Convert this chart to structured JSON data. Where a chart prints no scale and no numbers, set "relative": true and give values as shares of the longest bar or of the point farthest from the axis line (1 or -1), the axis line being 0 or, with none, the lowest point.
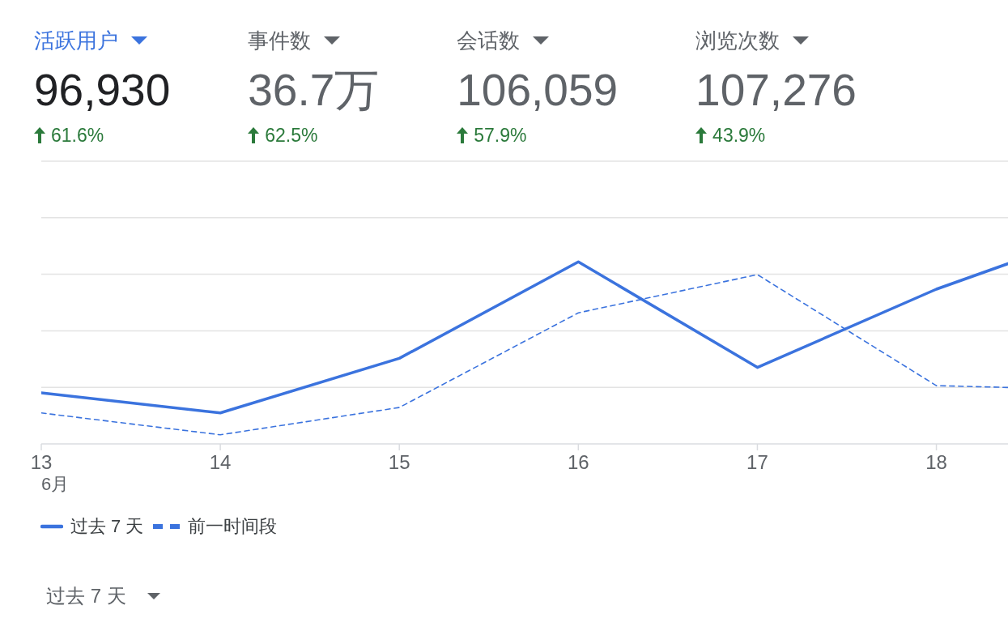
{
  "chart_data": [
    {
      "type": "other",
      "annotations": [
        "活跃用户",
        "96,930",
        "61.6%",
        "事件数",
        "36.7万",
        "62.5%",
        "会话数",
        "106,059",
        "57.9%",
        "浏览次数",
        "107,276",
        "43.9%"
      ]
    },
    {
      "type": "line",
      "relative": true,
      "x": [
        13,
        14,
        15,
        16,
        17,
        18,
        18.4
      ],
      "xlim": [
        13,
        18.4
      ],
      "xticks": [
        13,
        14,
        15,
        16,
        17,
        18
      ],
      "series": [
        {
          "name": "过去 7 天",
          "color": "#3b73de",
          "line_style": "solid",
          "values": [
            0.28,
            0.17,
            0.47,
            1,
            0.42,
            0.85,
            0.99
          ]
        },
        {
          "name": "前一时间段",
          "color": "#3b73de",
          "line_style": "dashed",
          "values": [
            0.17,
            0.05,
            0.2,
            0.72,
            0.93,
            0.32,
            0.31
          ]
        }
      ],
      "grid": "y",
      "legend": "bottom left",
      "annotations": [
        "6月",
        "过去 7 天"
      ]
    }
  ]
}
